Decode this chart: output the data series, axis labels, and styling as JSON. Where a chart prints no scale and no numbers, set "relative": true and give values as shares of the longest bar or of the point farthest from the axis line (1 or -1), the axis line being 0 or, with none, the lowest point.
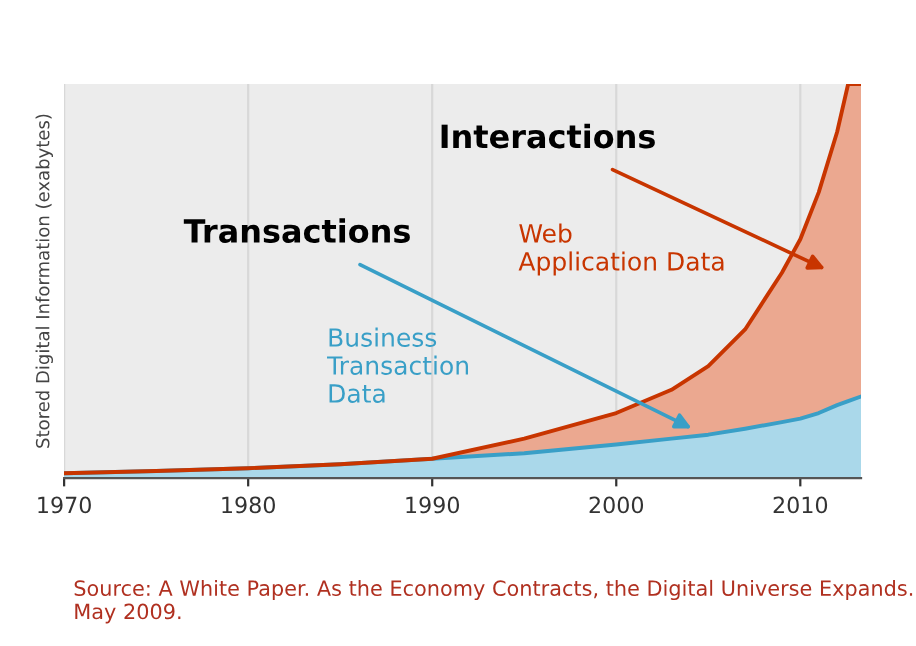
{
  "chart_data": {
    "type": "area",
    "stacked": true,
    "relative": true,
    "ylabel": "Stored Digital Information (exabytes)",
    "x": [
      1970,
      1975,
      1980,
      1985,
      1990,
      1995,
      2000,
      2003,
      2005,
      2007,
      2009,
      2010,
      2011,
      2012,
      2012.6,
      2013.3
    ],
    "xlim": [
      1970,
      2013.3
    ],
    "xticks": [
      1970,
      1980,
      1990,
      2000,
      2010
    ],
    "grid": "x",
    "legend": false,
    "series": [
      {
        "name": "Business Transaction Data",
        "color": "#aad8ea",
        "values": [
          0.012,
          0.018,
          0.025,
          0.035,
          0.049,
          0.063,
          0.085,
          0.1,
          0.11,
          0.125,
          0.142,
          0.151,
          0.165,
          0.185,
          0.195,
          0.207
        ]
      },
      {
        "name": "Web Application Data",
        "color": "#eba890",
        "values": [
          0,
          0,
          0,
          0,
          0,
          0.037,
          0.08,
          0.124,
          0.174,
          0.252,
          0.379,
          0.455,
          0.56,
          0.693,
          0.805,
          0.793
        ]
      }
    ],
    "annotations": [
      {
        "text": "Transactions",
        "x": 2004.1,
        "y": 0.126
      },
      "Interactions",
      "Source: A White Paper. As the Economy Contracts, the Digital Universe Expands. May 2009."
    ]
  }
}
